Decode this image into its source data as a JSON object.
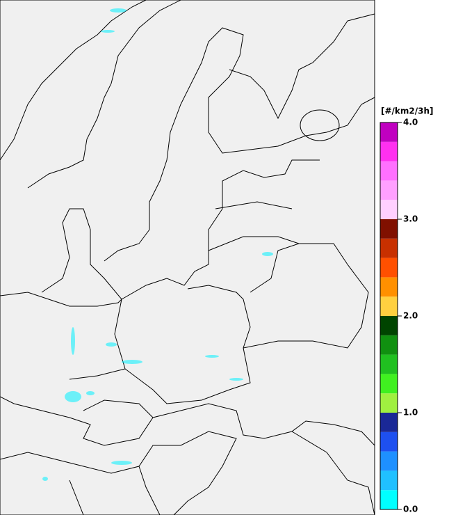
{
  "colorbar": {
    "unit": "[#/km2/3h]",
    "lim": [
      0,
      4
    ],
    "ticks": [
      {
        "value": 0,
        "label": "0.0"
      },
      {
        "value": 1,
        "label": "1.0"
      },
      {
        "value": 2,
        "label": "2.0"
      },
      {
        "value": 3,
        "label": "3.0"
      },
      {
        "value": 4,
        "label": "4.0"
      }
    ],
    "colors": [
      "#00ffff",
      "#20c0ff",
      "#1e90ff",
      "#1e50f0",
      "#1a2896",
      "#a0f040",
      "#40f020",
      "#20c020",
      "#109010",
      "#004400",
      "#ffd040",
      "#ff9000",
      "#ff5000",
      "#c83000",
      "#801000",
      "#ffd0ff",
      "#ffa0ff",
      "#ff70ff",
      "#ff30f0",
      "#c000c0"
    ]
  }
}
